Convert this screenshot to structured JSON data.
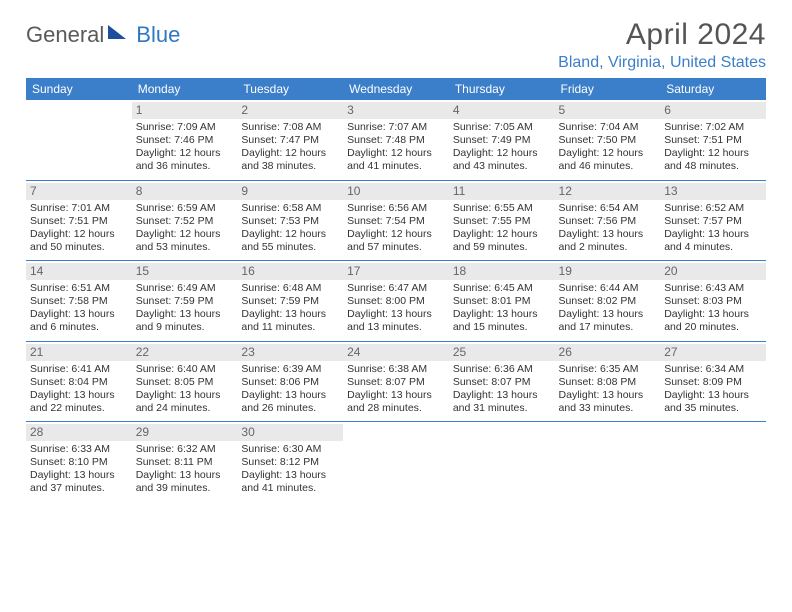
{
  "brand": {
    "part1": "General",
    "part2": "Blue"
  },
  "title": "April 2024",
  "location": "Bland, Virginia, United States",
  "colors": {
    "header_bg": "#3b7ec9",
    "header_text": "#ffffff",
    "daynum_bg": "#e9e9e9",
    "daynum_text": "#666666",
    "body_text": "#333333",
    "title_text": "#555555",
    "location_text": "#3b7ec9",
    "row_border": "#3b7ec9",
    "logo_gray": "#5a5a5a",
    "logo_blue": "#2f78c4",
    "logo_shape": "#1f4e9c"
  },
  "fonts": {
    "title_size_pt": 22,
    "location_size_pt": 12,
    "header_size_pt": 9,
    "cell_size_pt": 8,
    "daynum_size_pt": 9
  },
  "day_headers": [
    "Sunday",
    "Monday",
    "Tuesday",
    "Wednesday",
    "Thursday",
    "Friday",
    "Saturday"
  ],
  "weeks": [
    [
      null,
      {
        "n": "1",
        "sr": "Sunrise: 7:09 AM",
        "ss": "Sunset: 7:46 PM",
        "d1": "Daylight: 12 hours",
        "d2": "and 36 minutes."
      },
      {
        "n": "2",
        "sr": "Sunrise: 7:08 AM",
        "ss": "Sunset: 7:47 PM",
        "d1": "Daylight: 12 hours",
        "d2": "and 38 minutes."
      },
      {
        "n": "3",
        "sr": "Sunrise: 7:07 AM",
        "ss": "Sunset: 7:48 PM",
        "d1": "Daylight: 12 hours",
        "d2": "and 41 minutes."
      },
      {
        "n": "4",
        "sr": "Sunrise: 7:05 AM",
        "ss": "Sunset: 7:49 PM",
        "d1": "Daylight: 12 hours",
        "d2": "and 43 minutes."
      },
      {
        "n": "5",
        "sr": "Sunrise: 7:04 AM",
        "ss": "Sunset: 7:50 PM",
        "d1": "Daylight: 12 hours",
        "d2": "and 46 minutes."
      },
      {
        "n": "6",
        "sr": "Sunrise: 7:02 AM",
        "ss": "Sunset: 7:51 PM",
        "d1": "Daylight: 12 hours",
        "d2": "and 48 minutes."
      }
    ],
    [
      {
        "n": "7",
        "sr": "Sunrise: 7:01 AM",
        "ss": "Sunset: 7:51 PM",
        "d1": "Daylight: 12 hours",
        "d2": "and 50 minutes."
      },
      {
        "n": "8",
        "sr": "Sunrise: 6:59 AM",
        "ss": "Sunset: 7:52 PM",
        "d1": "Daylight: 12 hours",
        "d2": "and 53 minutes."
      },
      {
        "n": "9",
        "sr": "Sunrise: 6:58 AM",
        "ss": "Sunset: 7:53 PM",
        "d1": "Daylight: 12 hours",
        "d2": "and 55 minutes."
      },
      {
        "n": "10",
        "sr": "Sunrise: 6:56 AM",
        "ss": "Sunset: 7:54 PM",
        "d1": "Daylight: 12 hours",
        "d2": "and 57 minutes."
      },
      {
        "n": "11",
        "sr": "Sunrise: 6:55 AM",
        "ss": "Sunset: 7:55 PM",
        "d1": "Daylight: 12 hours",
        "d2": "and 59 minutes."
      },
      {
        "n": "12",
        "sr": "Sunrise: 6:54 AM",
        "ss": "Sunset: 7:56 PM",
        "d1": "Daylight: 13 hours",
        "d2": "and 2 minutes."
      },
      {
        "n": "13",
        "sr": "Sunrise: 6:52 AM",
        "ss": "Sunset: 7:57 PM",
        "d1": "Daylight: 13 hours",
        "d2": "and 4 minutes."
      }
    ],
    [
      {
        "n": "14",
        "sr": "Sunrise: 6:51 AM",
        "ss": "Sunset: 7:58 PM",
        "d1": "Daylight: 13 hours",
        "d2": "and 6 minutes."
      },
      {
        "n": "15",
        "sr": "Sunrise: 6:49 AM",
        "ss": "Sunset: 7:59 PM",
        "d1": "Daylight: 13 hours",
        "d2": "and 9 minutes."
      },
      {
        "n": "16",
        "sr": "Sunrise: 6:48 AM",
        "ss": "Sunset: 7:59 PM",
        "d1": "Daylight: 13 hours",
        "d2": "and 11 minutes."
      },
      {
        "n": "17",
        "sr": "Sunrise: 6:47 AM",
        "ss": "Sunset: 8:00 PM",
        "d1": "Daylight: 13 hours",
        "d2": "and 13 minutes."
      },
      {
        "n": "18",
        "sr": "Sunrise: 6:45 AM",
        "ss": "Sunset: 8:01 PM",
        "d1": "Daylight: 13 hours",
        "d2": "and 15 minutes."
      },
      {
        "n": "19",
        "sr": "Sunrise: 6:44 AM",
        "ss": "Sunset: 8:02 PM",
        "d1": "Daylight: 13 hours",
        "d2": "and 17 minutes."
      },
      {
        "n": "20",
        "sr": "Sunrise: 6:43 AM",
        "ss": "Sunset: 8:03 PM",
        "d1": "Daylight: 13 hours",
        "d2": "and 20 minutes."
      }
    ],
    [
      {
        "n": "21",
        "sr": "Sunrise: 6:41 AM",
        "ss": "Sunset: 8:04 PM",
        "d1": "Daylight: 13 hours",
        "d2": "and 22 minutes."
      },
      {
        "n": "22",
        "sr": "Sunrise: 6:40 AM",
        "ss": "Sunset: 8:05 PM",
        "d1": "Daylight: 13 hours",
        "d2": "and 24 minutes."
      },
      {
        "n": "23",
        "sr": "Sunrise: 6:39 AM",
        "ss": "Sunset: 8:06 PM",
        "d1": "Daylight: 13 hours",
        "d2": "and 26 minutes."
      },
      {
        "n": "24",
        "sr": "Sunrise: 6:38 AM",
        "ss": "Sunset: 8:07 PM",
        "d1": "Daylight: 13 hours",
        "d2": "and 28 minutes."
      },
      {
        "n": "25",
        "sr": "Sunrise: 6:36 AM",
        "ss": "Sunset: 8:07 PM",
        "d1": "Daylight: 13 hours",
        "d2": "and 31 minutes."
      },
      {
        "n": "26",
        "sr": "Sunrise: 6:35 AM",
        "ss": "Sunset: 8:08 PM",
        "d1": "Daylight: 13 hours",
        "d2": "and 33 minutes."
      },
      {
        "n": "27",
        "sr": "Sunrise: 6:34 AM",
        "ss": "Sunset: 8:09 PM",
        "d1": "Daylight: 13 hours",
        "d2": "and 35 minutes."
      }
    ],
    [
      {
        "n": "28",
        "sr": "Sunrise: 6:33 AM",
        "ss": "Sunset: 8:10 PM",
        "d1": "Daylight: 13 hours",
        "d2": "and 37 minutes."
      },
      {
        "n": "29",
        "sr": "Sunrise: 6:32 AM",
        "ss": "Sunset: 8:11 PM",
        "d1": "Daylight: 13 hours",
        "d2": "and 39 minutes."
      },
      {
        "n": "30",
        "sr": "Sunrise: 6:30 AM",
        "ss": "Sunset: 8:12 PM",
        "d1": "Daylight: 13 hours",
        "d2": "and 41 minutes."
      },
      null,
      null,
      null,
      null
    ]
  ]
}
